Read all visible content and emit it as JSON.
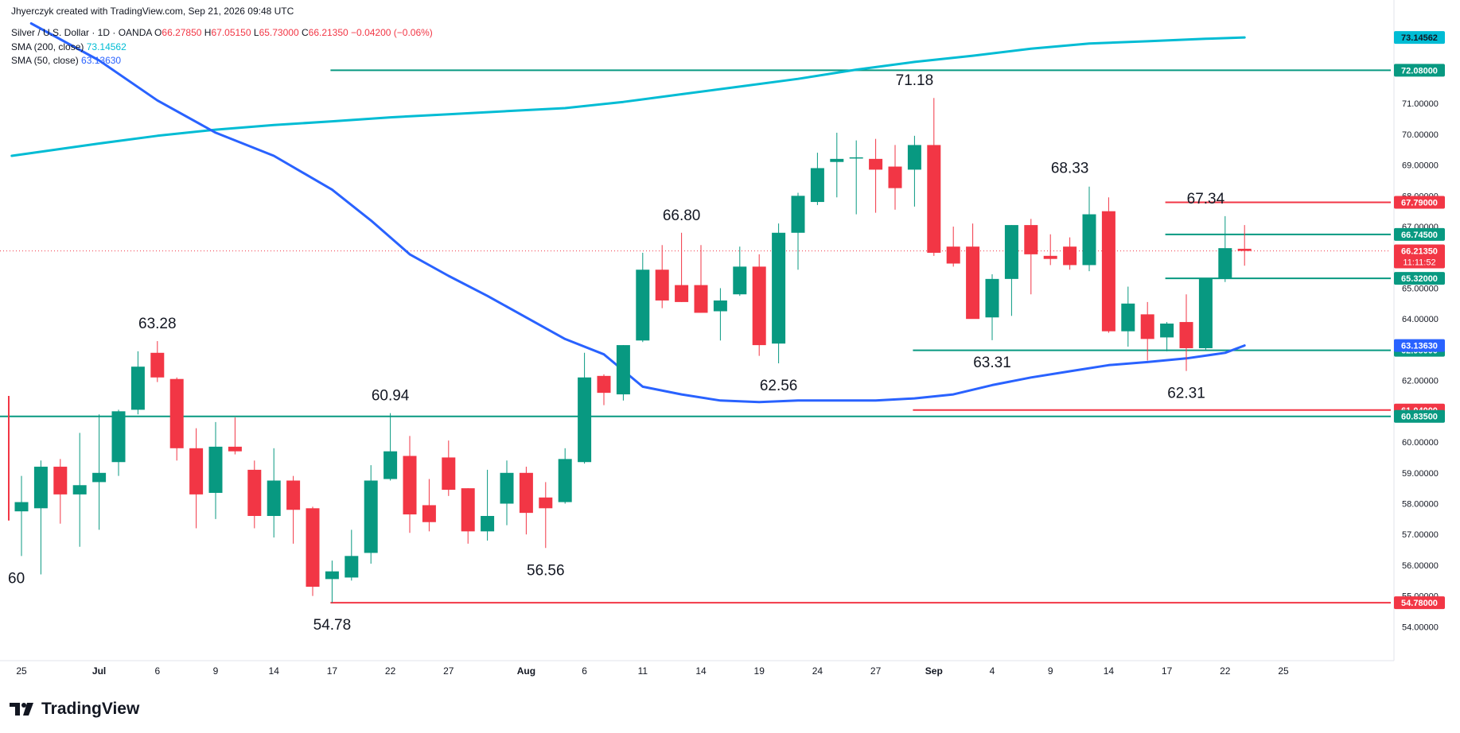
{
  "header": {
    "attribution": "Jhyerczyk created with TradingView.com, Sep 21, 2026 09:48 UTC",
    "symbol": "Silver / U.S. Dollar · 1D · OANDA",
    "ohlc": {
      "o_label": "O",
      "o": "66.27850",
      "h_label": "H",
      "h": "67.05150",
      "l_label": "L",
      "l": "65.73000",
      "c_label": "C",
      "c": "66.21350",
      "chg": "−0.04200 (−0.06%)"
    },
    "sma200": {
      "label": "SMA (200, close)",
      "value": "73.14562"
    },
    "sma50": {
      "label": "SMA (50, close)",
      "value": "63.13630"
    }
  },
  "logo": {
    "text": "TradingView"
  },
  "colors": {
    "up": "#089981",
    "down": "#f23645",
    "sma200": "#00bcd4",
    "sma50": "#2962ff",
    "hline_green": "#089981",
    "hline_red": "#f23645"
  },
  "chart_data": {
    "type": "candlestick",
    "ylim": [
      53.7,
      74.0
    ],
    "grid": false,
    "x_ticks": [
      {
        "label": "25",
        "i": 0
      },
      {
        "label": "Jul",
        "i": 4,
        "bold": true
      },
      {
        "label": "6",
        "i": 7
      },
      {
        "label": "9",
        "i": 10
      },
      {
        "label": "14",
        "i": 13
      },
      {
        "label": "17",
        "i": 16
      },
      {
        "label": "22",
        "i": 19
      },
      {
        "label": "27",
        "i": 22
      },
      {
        "label": "Aug",
        "i": 26,
        "bold": true
      },
      {
        "label": "6",
        "i": 29
      },
      {
        "label": "11",
        "i": 32
      },
      {
        "label": "14",
        "i": 35
      },
      {
        "label": "19",
        "i": 38
      },
      {
        "label": "24",
        "i": 41
      },
      {
        "label": "27",
        "i": 44
      },
      {
        "label": "Sep",
        "i": 47,
        "bold": true
      },
      {
        "label": "4",
        "i": 50
      },
      {
        "label": "9",
        "i": 53
      },
      {
        "label": "14",
        "i": 56
      },
      {
        "label": "17",
        "i": 59
      },
      {
        "label": "22",
        "i": 62
      },
      {
        "label": "25",
        "i": 65
      }
    ],
    "y_ticks": [
      "71.00000",
      "70.00000",
      "69.00000",
      "68.00000",
      "67.00000",
      "65.00000",
      "64.00000",
      "62.00000",
      "60.00000",
      "59.00000",
      "58.00000",
      "57.00000",
      "56.00000",
      "55.00000",
      "54.00000"
    ],
    "candles": [
      {
        "o": 57.75,
        "h": 58.9,
        "l": 56.3,
        "c": 58.05
      },
      {
        "o": 57.85,
        "h": 59.4,
        "l": 55.7,
        "c": 59.2
      },
      {
        "o": 59.2,
        "h": 59.45,
        "l": 57.35,
        "c": 58.3
      },
      {
        "o": 58.3,
        "h": 60.3,
        "l": 56.6,
        "c": 58.6
      },
      {
        "o": 58.7,
        "h": 60.9,
        "l": 57.15,
        "c": 59.0
      },
      {
        "o": 59.35,
        "h": 61.05,
        "l": 58.9,
        "c": 61.0
      },
      {
        "o": 61.05,
        "h": 62.95,
        "l": 60.9,
        "c": 62.45
      },
      {
        "o": 62.9,
        "h": 63.28,
        "l": 61.95,
        "c": 62.1
      },
      {
        "o": 62.05,
        "h": 62.1,
        "l": 59.4,
        "c": 59.8
      },
      {
        "o": 59.8,
        "h": 60.45,
        "l": 57.2,
        "c": 58.3
      },
      {
        "o": 58.35,
        "h": 60.65,
        "l": 57.5,
        "c": 59.85
      },
      {
        "o": 59.85,
        "h": 60.8,
        "l": 59.6,
        "c": 59.7
      },
      {
        "o": 59.1,
        "h": 59.4,
        "l": 57.2,
        "c": 57.6
      },
      {
        "o": 57.6,
        "h": 59.8,
        "l": 56.9,
        "c": 58.75
      },
      {
        "o": 58.75,
        "h": 58.9,
        "l": 56.7,
        "c": 57.8
      },
      {
        "o": 57.85,
        "h": 57.9,
        "l": 55.0,
        "c": 55.3
      },
      {
        "o": 55.55,
        "h": 56.15,
        "l": 54.78,
        "c": 55.8
      },
      {
        "o": 55.6,
        "h": 57.15,
        "l": 55.5,
        "c": 56.3
      },
      {
        "o": 56.4,
        "h": 59.25,
        "l": 56.05,
        "c": 58.75
      },
      {
        "o": 58.8,
        "h": 60.94,
        "l": 58.75,
        "c": 59.7
      },
      {
        "o": 59.55,
        "h": 60.2,
        "l": 57.05,
        "c": 57.65
      },
      {
        "o": 57.95,
        "h": 58.8,
        "l": 57.1,
        "c": 57.4
      },
      {
        "o": 59.5,
        "h": 60.05,
        "l": 58.25,
        "c": 58.45
      },
      {
        "o": 58.5,
        "h": 58.5,
        "l": 56.7,
        "c": 57.1
      },
      {
        "o": 57.1,
        "h": 59.1,
        "l": 56.8,
        "c": 57.6
      },
      {
        "o": 58.0,
        "h": 59.4,
        "l": 57.3,
        "c": 59.0
      },
      {
        "o": 59.0,
        "h": 59.2,
        "l": 57.0,
        "c": 57.7
      },
      {
        "o": 58.2,
        "h": 58.7,
        "l": 56.56,
        "c": 57.85
      },
      {
        "o": 58.05,
        "h": 59.8,
        "l": 58.0,
        "c": 59.45
      },
      {
        "o": 59.35,
        "h": 62.9,
        "l": 59.3,
        "c": 62.1
      },
      {
        "o": 62.15,
        "h": 62.2,
        "l": 61.2,
        "c": 61.6
      },
      {
        "o": 61.55,
        "h": 63.15,
        "l": 61.35,
        "c": 63.15
      },
      {
        "o": 63.3,
        "h": 66.15,
        "l": 63.25,
        "c": 65.6
      },
      {
        "o": 65.6,
        "h": 66.4,
        "l": 64.35,
        "c": 64.6
      },
      {
        "o": 65.1,
        "h": 66.8,
        "l": 64.55,
        "c": 64.55
      },
      {
        "o": 65.1,
        "h": 66.4,
        "l": 64.2,
        "c": 64.2
      },
      {
        "o": 64.25,
        "h": 65.0,
        "l": 63.3,
        "c": 64.6
      },
      {
        "o": 64.8,
        "h": 66.35,
        "l": 64.75,
        "c": 65.7
      },
      {
        "o": 65.7,
        "h": 66.1,
        "l": 62.8,
        "c": 63.15
      },
      {
        "o": 63.2,
        "h": 67.1,
        "l": 62.56,
        "c": 66.8
      },
      {
        "o": 66.8,
        "h": 68.1,
        "l": 65.6,
        "c": 68.0
      },
      {
        "o": 67.8,
        "h": 69.4,
        "l": 67.7,
        "c": 68.9
      },
      {
        "o": 69.1,
        "h": 70.05,
        "l": 67.95,
        "c": 69.2
      },
      {
        "o": 69.25,
        "h": 69.8,
        "l": 67.4,
        "c": 69.25
      },
      {
        "o": 69.2,
        "h": 69.85,
        "l": 67.45,
        "c": 68.85
      },
      {
        "o": 68.95,
        "h": 69.65,
        "l": 67.55,
        "c": 68.25
      },
      {
        "o": 68.85,
        "h": 69.95,
        "l": 67.65,
        "c": 69.65
      },
      {
        "o": 69.65,
        "h": 71.18,
        "l": 66.05,
        "c": 66.15
      },
      {
        "o": 66.35,
        "h": 67.0,
        "l": 65.7,
        "c": 65.8
      },
      {
        "o": 66.35,
        "h": 67.1,
        "l": 64.05,
        "c": 64.0
      },
      {
        "o": 64.05,
        "h": 65.45,
        "l": 63.31,
        "c": 65.3
      },
      {
        "o": 65.3,
        "h": 67.05,
        "l": 64.1,
        "c": 67.05
      },
      {
        "o": 67.05,
        "h": 67.25,
        "l": 64.8,
        "c": 66.1
      },
      {
        "o": 66.05,
        "h": 66.75,
        "l": 65.75,
        "c": 65.95
      },
      {
        "o": 66.35,
        "h": 66.65,
        "l": 65.6,
        "c": 65.75
      },
      {
        "o": 65.75,
        "h": 68.3,
        "l": 65.55,
        "c": 67.4
      },
      {
        "o": 67.5,
        "h": 67.95,
        "l": 63.55,
        "c": 63.6
      },
      {
        "o": 63.6,
        "h": 65.05,
        "l": 63.1,
        "c": 64.5
      },
      {
        "o": 64.15,
        "h": 64.55,
        "l": 62.65,
        "c": 63.35
      },
      {
        "o": 63.4,
        "h": 63.9,
        "l": 62.95,
        "c": 63.85
      },
      {
        "o": 63.9,
        "h": 64.8,
        "l": 62.31,
        "c": 63.05
      },
      {
        "o": 63.05,
        "h": 65.3,
        "l": 63.0,
        "c": 65.3
      },
      {
        "o": 65.3,
        "h": 67.34,
        "l": 65.2,
        "c": 66.3
      },
      {
        "o": 66.28,
        "h": 67.05,
        "l": 65.73,
        "c": 66.21
      }
    ],
    "annotations": [
      {
        "text": "63.28",
        "i": 7,
        "y": 63.28,
        "pos": "above"
      },
      {
        "text": "54.78",
        "i": 16,
        "y": 54.78,
        "pos": "below"
      },
      {
        "text": "60.94",
        "i": 19,
        "y": 60.94,
        "pos": "above"
      },
      {
        "text": "56.56",
        "i": 27,
        "y": 56.56,
        "pos": "below"
      },
      {
        "text": "66.80",
        "i": 34,
        "y": 66.8,
        "pos": "above"
      },
      {
        "text": "62.56",
        "i": 39,
        "y": 62.56,
        "pos": "below"
      },
      {
        "text": "71.18",
        "i": 46,
        "y": 71.18,
        "pos": "above"
      },
      {
        "text": "63.31",
        "i": 50,
        "y": 63.31,
        "pos": "below"
      },
      {
        "text": "68.33",
        "i": 54,
        "y": 68.33,
        "pos": "above"
      },
      {
        "text": "62.31",
        "i": 60,
        "y": 62.31,
        "pos": "below"
      },
      {
        "text": "67.34",
        "i": 61,
        "y": 67.34,
        "pos": "above"
      },
      {
        "text": "60",
        "i": -0.3,
        "y": 55.6,
        "pos": "left"
      }
    ],
    "horizontal_levels": [
      {
        "value": 72.08,
        "label": "72.08000",
        "color": "green",
        "from_i": 16
      },
      {
        "value": 67.79,
        "label": "67.79000",
        "color": "red",
        "from_i": 59
      },
      {
        "value": 66.745,
        "label": "66.74500",
        "color": "green",
        "from_i": 59
      },
      {
        "value": 65.32,
        "label": "65.32000",
        "color": "green",
        "from_i": 59
      },
      {
        "value": 62.98,
        "label": "62.98000",
        "color": "green",
        "from_i": 46
      },
      {
        "value": 61.04,
        "label": "61.04000",
        "color": "red",
        "from_i": 46
      },
      {
        "value": 60.835,
        "label": "60.83500",
        "color": "green",
        "from_i": -1
      },
      {
        "value": 54.78,
        "label": "54.78000",
        "color": "red",
        "from_i": 16
      }
    ],
    "price_tags": [
      {
        "value": 73.14562,
        "label": "73.14562",
        "color": "cyan"
      },
      {
        "value": 66.2135,
        "label": "66.21350",
        "sub": "11:11:52",
        "color": "red"
      },
      {
        "value": 63.1363,
        "label": "63.13630",
        "color": "blue"
      }
    ],
    "series": [
      {
        "name": "SMA (200, close)",
        "color": "#00bcd4",
        "points": [
          {
            "i": -0.5,
            "y": 69.3
          },
          {
            "i": 4,
            "y": 69.7
          },
          {
            "i": 7,
            "y": 69.95
          },
          {
            "i": 10,
            "y": 70.15
          },
          {
            "i": 13,
            "y": 70.3
          },
          {
            "i": 16,
            "y": 70.42
          },
          {
            "i": 19,
            "y": 70.55
          },
          {
            "i": 22,
            "y": 70.65
          },
          {
            "i": 25,
            "y": 70.75
          },
          {
            "i": 28,
            "y": 70.85
          },
          {
            "i": 31,
            "y": 71.05
          },
          {
            "i": 34,
            "y": 71.3
          },
          {
            "i": 37,
            "y": 71.55
          },
          {
            "i": 40,
            "y": 71.8
          },
          {
            "i": 43,
            "y": 72.1
          },
          {
            "i": 46,
            "y": 72.35
          },
          {
            "i": 49,
            "y": 72.55
          },
          {
            "i": 52,
            "y": 72.78
          },
          {
            "i": 55,
            "y": 72.95
          },
          {
            "i": 58,
            "y": 73.02
          },
          {
            "i": 61,
            "y": 73.1
          },
          {
            "i": 63,
            "y": 73.14562
          }
        ]
      },
      {
        "name": "SMA (50, close)",
        "color": "#2962ff",
        "points": [
          {
            "i": 0.5,
            "y": 73.6
          },
          {
            "i": 4,
            "y": 72.4
          },
          {
            "i": 7,
            "y": 71.1
          },
          {
            "i": 10,
            "y": 70.05
          },
          {
            "i": 13,
            "y": 69.3
          },
          {
            "i": 16,
            "y": 68.2
          },
          {
            "i": 18,
            "y": 67.2
          },
          {
            "i": 20,
            "y": 66.1
          },
          {
            "i": 22,
            "y": 65.4
          },
          {
            "i": 24,
            "y": 64.75
          },
          {
            "i": 26,
            "y": 64.05
          },
          {
            "i": 28,
            "y": 63.35
          },
          {
            "i": 30,
            "y": 62.85
          },
          {
            "i": 32,
            "y": 61.8
          },
          {
            "i": 34,
            "y": 61.55
          },
          {
            "i": 36,
            "y": 61.35
          },
          {
            "i": 38,
            "y": 61.3
          },
          {
            "i": 40,
            "y": 61.35
          },
          {
            "i": 42,
            "y": 61.35
          },
          {
            "i": 44,
            "y": 61.35
          },
          {
            "i": 46,
            "y": 61.42
          },
          {
            "i": 48,
            "y": 61.55
          },
          {
            "i": 50,
            "y": 61.85
          },
          {
            "i": 52,
            "y": 62.1
          },
          {
            "i": 54,
            "y": 62.3
          },
          {
            "i": 56,
            "y": 62.5
          },
          {
            "i": 58,
            "y": 62.6
          },
          {
            "i": 60,
            "y": 62.72
          },
          {
            "i": 62,
            "y": 62.9
          },
          {
            "i": 63,
            "y": 63.1363
          }
        ]
      }
    ]
  }
}
